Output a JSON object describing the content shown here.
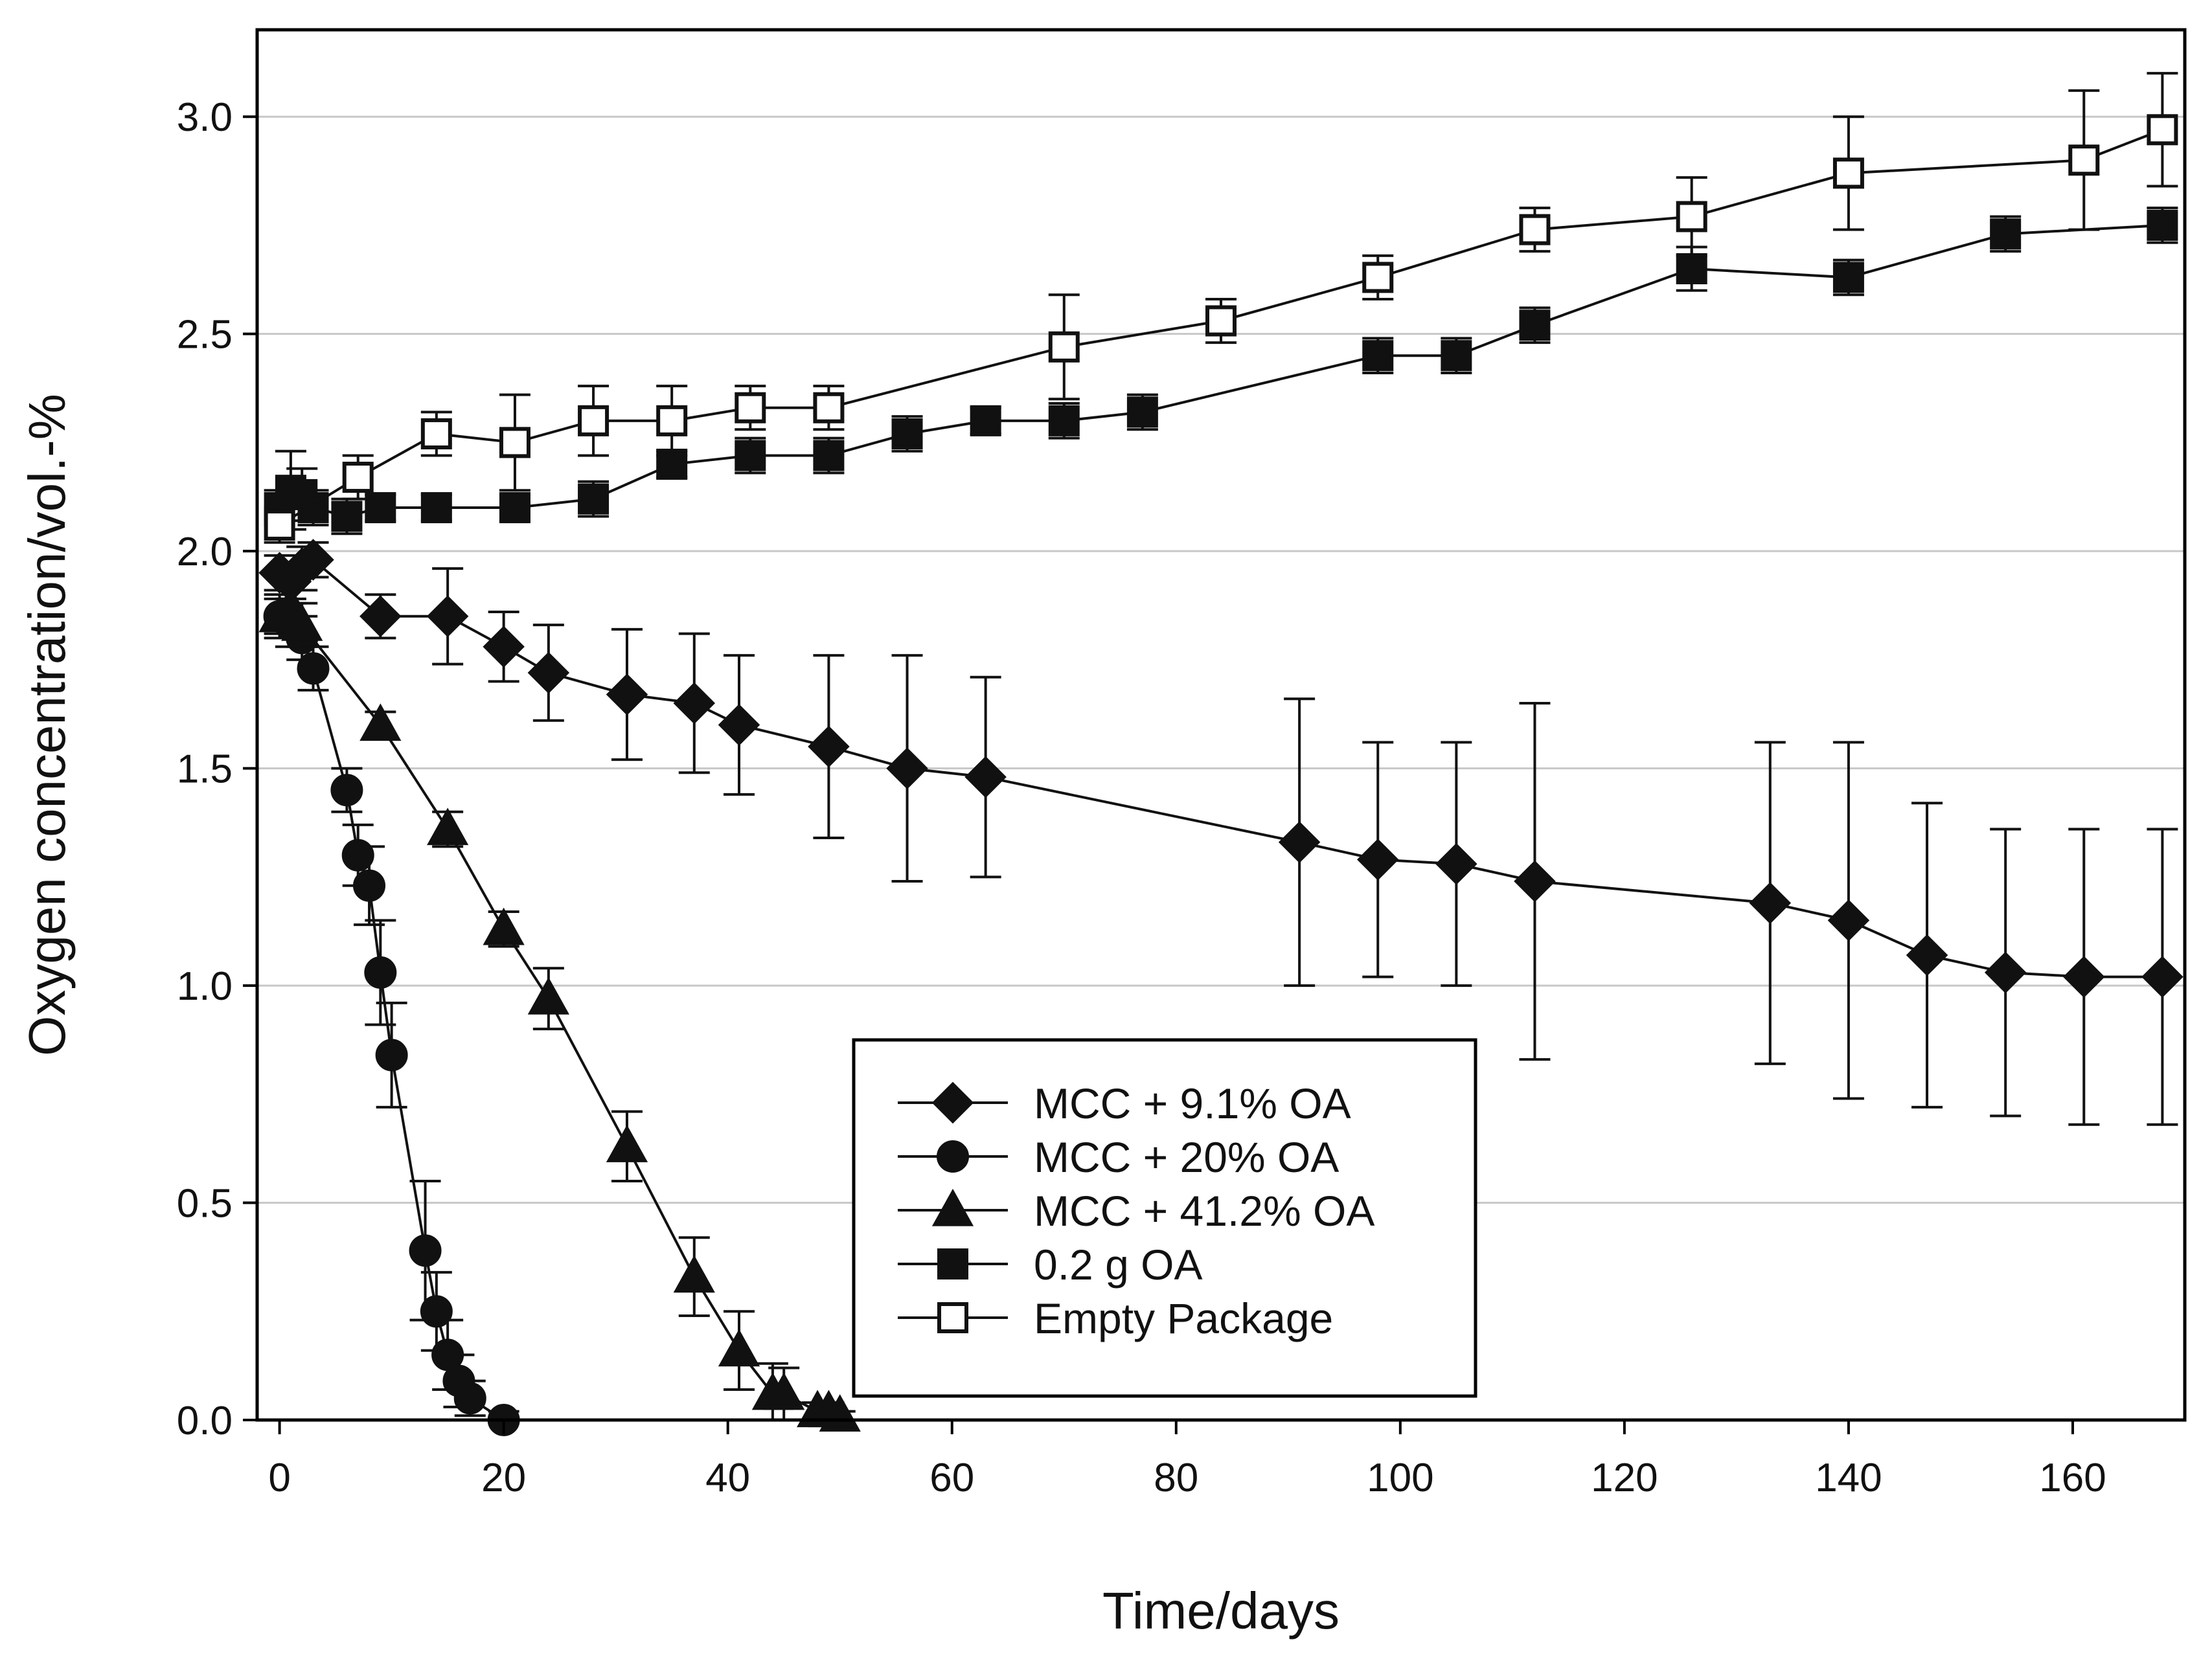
{
  "chart_data": {
    "type": "line",
    "title": "",
    "xlabel": "Time/days",
    "ylabel": "Oxygen concentration/vol.-%",
    "xlim": [
      -2,
      170
    ],
    "ylim": [
      0,
      3.2
    ],
    "xticks": [
      0,
      20,
      40,
      60,
      80,
      100,
      120,
      140,
      160
    ],
    "xtick_labels": [
      "0",
      "20",
      "40",
      "60",
      "80",
      "100",
      "120",
      "140",
      "160"
    ],
    "yticks": [
      0,
      0.5,
      1.0,
      1.5,
      2.0,
      2.5,
      3.0
    ],
    "ytick_labels": [
      "0.0",
      "0.5",
      "1.0",
      "1.5",
      "2.0",
      "2.5",
      "3.0"
    ],
    "grid": "horizontal",
    "legend_position": "bottom-center",
    "colors": {
      "line": "#111111",
      "grid": "#c8c8c8",
      "axis": "#000000",
      "open_fill": "#ffffff"
    },
    "series": [
      {
        "name": "MCC + 9.1% OA",
        "marker": "diamond",
        "filled": true,
        "x": [
          0,
          1,
          2,
          3,
          9,
          15,
          20,
          24,
          31,
          37,
          41,
          49,
          56,
          63,
          91,
          98,
          105,
          112,
          133,
          140,
          147,
          154,
          161,
          168
        ],
        "y": [
          1.95,
          1.93,
          1.96,
          1.98,
          1.85,
          1.85,
          1.78,
          1.72,
          1.67,
          1.65,
          1.6,
          1.55,
          1.5,
          1.48,
          1.33,
          1.29,
          1.28,
          1.24,
          1.19,
          1.15,
          1.07,
          1.03,
          1.02,
          1.02
        ],
        "err": [
          0.04,
          0.04,
          0.05,
          0.04,
          0.05,
          0.11,
          0.08,
          0.11,
          0.15,
          0.16,
          0.16,
          0.21,
          0.26,
          0.23,
          0.33,
          0.27,
          0.28,
          0.41,
          0.37,
          0.41,
          0.35,
          0.33,
          0.34,
          0.34
        ]
      },
      {
        "name": "MCC + 20% OA",
        "marker": "circle",
        "filled": true,
        "x": [
          0,
          1,
          2,
          3,
          6,
          7,
          8,
          9,
          10,
          13,
          14,
          15,
          16,
          17,
          20
        ],
        "y": [
          1.85,
          1.83,
          1.8,
          1.73,
          1.45,
          1.3,
          1.23,
          1.03,
          0.84,
          0.39,
          0.25,
          0.15,
          0.09,
          0.05,
          0.0
        ],
        "err": [
          0.05,
          0.05,
          0.05,
          0.05,
          0.05,
          0.07,
          0.09,
          0.12,
          0.12,
          0.16,
          0.09,
          0.08,
          0.06,
          0.04,
          0.02
        ]
      },
      {
        "name": "MCC + 41.2% OA",
        "marker": "triangle",
        "filled": true,
        "x": [
          0,
          1,
          2,
          9,
          15,
          20,
          24,
          31,
          37,
          41,
          44,
          45,
          48,
          49,
          50
        ],
        "y": [
          1.85,
          1.87,
          1.83,
          1.6,
          1.36,
          1.13,
          0.97,
          0.63,
          0.33,
          0.16,
          0.06,
          0.06,
          0.02,
          0.02,
          0.01
        ],
        "err": [
          0.04,
          0.04,
          0.05,
          0.03,
          0.04,
          0.04,
          0.07,
          0.08,
          0.09,
          0.09,
          0.07,
          0.06,
          0.02,
          0.02,
          0.01
        ]
      },
      {
        "name": "0.2 g OA",
        "marker": "square",
        "filled": true,
        "x": [
          0,
          1,
          2,
          3,
          6,
          9,
          14,
          21,
          28,
          35,
          42,
          49,
          56,
          63,
          70,
          77,
          98,
          105,
          112,
          126,
          140,
          154,
          168
        ],
        "y": [
          2.1,
          2.14,
          2.13,
          2.1,
          2.08,
          2.1,
          2.1,
          2.1,
          2.12,
          2.2,
          2.22,
          2.22,
          2.27,
          2.3,
          2.3,
          2.32,
          2.45,
          2.45,
          2.52,
          2.65,
          2.63,
          2.73,
          2.75
        ],
        "err": [
          0.04,
          0.09,
          0.06,
          0.04,
          0.04,
          0.03,
          0.03,
          0.03,
          0.04,
          0.03,
          0.04,
          0.04,
          0.04,
          0.03,
          0.04,
          0.04,
          0.04,
          0.04,
          0.04,
          0.05,
          0.04,
          0.04,
          0.04
        ]
      },
      {
        "name": "Empty Package",
        "marker": "square",
        "filled": false,
        "x": [
          0,
          7,
          14,
          21,
          28,
          35,
          42,
          49,
          70,
          84,
          98,
          112,
          126,
          140,
          161,
          168
        ],
        "y": [
          2.06,
          2.17,
          2.27,
          2.25,
          2.3,
          2.3,
          2.33,
          2.33,
          2.47,
          2.53,
          2.63,
          2.74,
          2.77,
          2.87,
          2.9,
          2.97
        ],
        "err": [
          0.04,
          0.05,
          0.05,
          0.11,
          0.08,
          0.08,
          0.05,
          0.05,
          0.12,
          0.05,
          0.05,
          0.05,
          0.09,
          0.13,
          0.16,
          0.13
        ]
      }
    ]
  }
}
